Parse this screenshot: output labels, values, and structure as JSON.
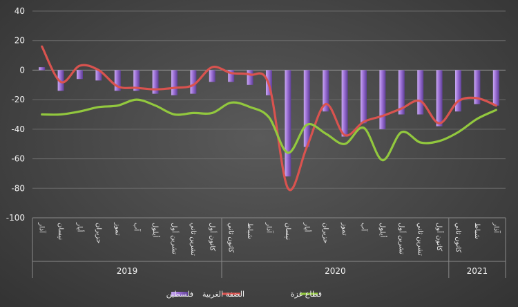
{
  "chart_data": {
    "type": "bar",
    "title": "",
    "xlabel": "",
    "ylabel": "",
    "ylim": [
      -100,
      40
    ],
    "yticks": [
      -100,
      -80,
      -60,
      -40,
      -20,
      0,
      20,
      40
    ],
    "categories": [
      "آذار",
      "نيسان",
      "أيار",
      "حزيران",
      "تموز",
      "آب",
      "أيلول",
      "تشرين أول",
      "تشرين ثاني",
      "كانون أول",
      "كانون ثاني",
      "شباط",
      "آذار",
      "نيسان",
      "أيار",
      "حزيران",
      "تموز",
      "آب",
      "أيلول",
      "تشرين أول",
      "تشرين ثاني",
      "كانون أول",
      "كانون ثاني",
      "شباط",
      "آذار"
    ],
    "groups": [
      {
        "label": "2019",
        "start": 0,
        "end": 9
      },
      {
        "label": "2020",
        "start": 10,
        "end": 21
      },
      {
        "label": "2021",
        "start": 22,
        "end": 24
      }
    ],
    "series": [
      {
        "name": "فلسطين",
        "kind": "bar",
        "color": "#9b6fd4",
        "values": [
          2,
          -14,
          -6,
          -7,
          -14,
          -14,
          -16,
          -17,
          -16,
          -8,
          -8,
          -10,
          -17,
          -72,
          -52,
          -28,
          -45,
          -36,
          -40,
          -30,
          -30,
          -38,
          -28,
          -23,
          -24
        ]
      },
      {
        "name": "الضفة الغربية",
        "kind": "line",
        "color": "#d9534f",
        "values": [
          16,
          -8,
          3,
          0,
          -11,
          -12,
          -13,
          -12,
          -10,
          2,
          -2,
          -3,
          -10,
          -80,
          -52,
          -23,
          -44,
          -35,
          -31,
          -26,
          -21,
          -36,
          -21,
          -19,
          -24
        ]
      },
      {
        "name": "قطاع غزة",
        "kind": "line",
        "color": "#92c83e",
        "values": [
          -30,
          -30,
          -28,
          -25,
          -24,
          -20,
          -24,
          -30,
          -29,
          -29,
          -22,
          -25,
          -32,
          -56,
          -37,
          -43,
          -50,
          -39,
          -61,
          -42,
          -49,
          -48,
          -42,
          -33,
          -27
        ]
      }
    ],
    "grid": true,
    "legend_position": "bottom"
  }
}
